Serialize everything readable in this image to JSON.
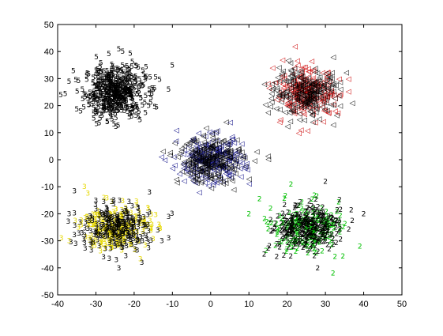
{
  "chart_data": {
    "type": "scatter",
    "title": "",
    "xlabel": "",
    "ylabel": "",
    "xlim": [
      -40,
      50
    ],
    "ylim": [
      -50,
      50
    ],
    "xticks": [
      "-40",
      "-30",
      "-20",
      "-10",
      "0",
      "10",
      "20",
      "30",
      "40",
      "50"
    ],
    "yticks": [
      "-50",
      "-40",
      "-30",
      "-20",
      "-10",
      "0",
      "10",
      "20",
      "30",
      "40",
      "50"
    ],
    "grid": false,
    "legend": "none",
    "series": [
      {
        "marker": "5",
        "label_glyph": "5",
        "color": "#000000",
        "center": [
          -25,
          25
        ],
        "spread": [
          4.0,
          4.8
        ],
        "count": 500,
        "outliers": [
          [
            -23,
            40
          ],
          [
            -24,
            41
          ],
          [
            -10,
            35
          ],
          [
            -11,
            26
          ],
          [
            -37,
            29
          ],
          [
            -34,
            18
          ],
          [
            -27,
            14
          ],
          [
            -21,
            17
          ],
          [
            -40,
            24
          ]
        ]
      },
      {
        "marker": "triangle-left",
        "label_glyph": "◁",
        "color": "#cc0000",
        "center": [
          25,
          25
        ],
        "spread": [
          4.2,
          4.2
        ],
        "count": 500,
        "outliers": [
          [
            22,
            42
          ],
          [
            32,
            38
          ],
          [
            36,
            30
          ],
          [
            14,
            28
          ],
          [
            23,
            10
          ],
          [
            18,
            14
          ],
          [
            37,
            21
          ],
          [
            32,
            13
          ]
        ]
      },
      {
        "marker": "triangle-left",
        "label_glyph": "◁",
        "color": "#000080",
        "center": [
          0,
          0
        ],
        "spread": [
          4.2,
          4.2
        ],
        "count": 500,
        "outliers": [
          [
            -9,
            11
          ],
          [
            -12,
            0
          ],
          [
            4,
            14
          ],
          [
            12,
            3
          ],
          [
            -3,
            -12
          ],
          [
            6,
            -11
          ],
          [
            -10,
            -3
          ],
          [
            10,
            -7
          ]
        ]
      },
      {
        "marker": "3",
        "label_glyph": "3",
        "color": "#e6d800",
        "center": [
          -25,
          -25
        ],
        "spread": [
          4.5,
          4.2
        ],
        "count": 500,
        "outliers": [
          [
            -33,
            -10
          ],
          [
            -37,
            -20
          ],
          [
            -37,
            -30
          ],
          [
            -24,
            -40
          ],
          [
            -18,
            -38
          ],
          [
            -28,
            -36
          ],
          [
            -11,
            -21
          ],
          [
            -11,
            -29
          ],
          [
            -16,
            -12
          ]
        ]
      },
      {
        "marker": "2",
        "label_glyph": "2",
        "color": "#00c000",
        "center": [
          25,
          -25
        ],
        "spread": [
          4.5,
          4.2
        ],
        "count": 500,
        "outliers": [
          [
            10,
            -20
          ],
          [
            14,
            -35
          ],
          [
            39,
            -32
          ],
          [
            40,
            -20
          ],
          [
            30,
            -8
          ],
          [
            21,
            -9
          ],
          [
            32,
            -42
          ],
          [
            28,
            -40
          ]
        ]
      }
    ]
  }
}
